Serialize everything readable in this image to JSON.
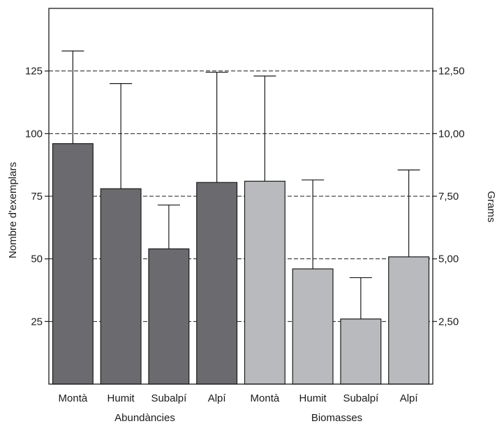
{
  "chart_data": {
    "type": "bar",
    "groups": [
      {
        "label": "Abundàncies",
        "axis": "left",
        "color": "#6b6b6f",
        "categories": [
          "Montà",
          "Humit",
          "Subalpí",
          "Alpí"
        ],
        "values": [
          96,
          78,
          54,
          80.5
        ],
        "error_upper": [
          133,
          120,
          71.5,
          124.5
        ]
      },
      {
        "label": "Biomasses",
        "axis": "right",
        "color": "#b9babd",
        "categories": [
          "Montà",
          "Humit",
          "Subalpí",
          "Alpí"
        ],
        "values": [
          8.1,
          4.6,
          2.6,
          5.08
        ],
        "error_upper": [
          12.3,
          8.15,
          4.25,
          8.55
        ]
      }
    ],
    "ylabel": "Nombre d'exemplars",
    "y2label": "Grams",
    "ylim": [
      0,
      150
    ],
    "y2lim": [
      0,
      15
    ],
    "yticks": [
      25,
      50,
      75,
      100,
      125
    ],
    "y2ticks": [
      2.5,
      5,
      7.5,
      10,
      12.5
    ],
    "ytick_labels": [
      "25",
      "50",
      "75",
      "100",
      "125"
    ],
    "y2tick_labels": [
      "2,50",
      "5,00",
      "7,50",
      "10,00",
      "12,50"
    ],
    "grid": "dashed horizontal"
  }
}
